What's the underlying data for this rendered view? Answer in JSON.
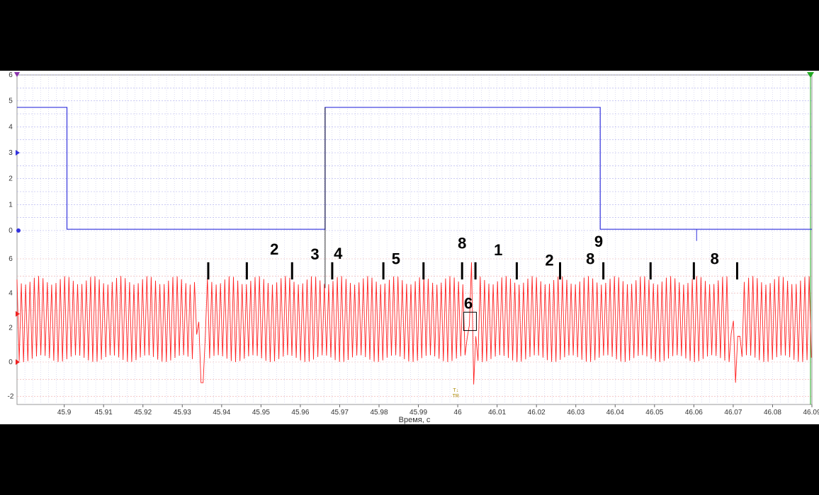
{
  "chart_data": {
    "type": "line",
    "title": "",
    "xlabel": "Время, с",
    "xlim": [
      45.888,
      46.09
    ],
    "x_ticks": [
      "45.9",
      "45.91",
      "45.92",
      "45.93",
      "45.94",
      "45.95",
      "45.96",
      "45.97",
      "45.98",
      "45.99",
      "46",
      "46.01",
      "46.02",
      "46.03",
      "46.04",
      "46.05",
      "46.06",
      "46.07",
      "46.08",
      "46.09"
    ],
    "ylim": [
      -2.2,
      6.2
    ],
    "y_ticks_top": [
      "6",
      "5",
      "4",
      "3",
      "2",
      "1",
      "0"
    ],
    "y_ticks_bottom": [
      "6",
      "4",
      "2",
      "0",
      "-2"
    ],
    "grid": true,
    "series": [
      {
        "color": "#3333dd",
        "points": [
          [
            45.888,
            4.75
          ],
          [
            45.9007,
            4.75
          ],
          [
            45.9007,
            0.05
          ],
          [
            45.9663,
            0.05
          ],
          [
            45.9663,
            4.75
          ],
          [
            46.0362,
            4.75
          ],
          [
            46.0362,
            0.05
          ],
          [
            46.09,
            0.05
          ]
        ],
        "glitch": {
          "x": 46.0607,
          "y": -0.4
        }
      },
      {
        "color": "#ff2222",
        "oscillation": {
          "high": 5.0,
          "low": 0.0,
          "period": 0.0011
        },
        "gaps": [
          {
            "x": 45.9347,
            "peak": 5.9,
            "dip": -1.2
          },
          {
            "x": 46.0036,
            "peak": 5.8,
            "dip": -1.3
          },
          {
            "x": 46.0705,
            "peak": 5.8,
            "dip": -1.2
          }
        ]
      }
    ],
    "annotations": [
      {
        "text": "2",
        "x": 45.9534,
        "y": 6.25
      },
      {
        "text": "3",
        "x": 45.9637,
        "y": 5.95
      },
      {
        "text": "4",
        "x": 45.9696,
        "y": 6.0
      },
      {
        "text": "5",
        "x": 45.9843,
        "y": 5.7
      },
      {
        "text": "8",
        "x": 46.0011,
        "y": 6.6
      },
      {
        "text": "1",
        "x": 46.0103,
        "y": 6.2
      },
      {
        "text": "6",
        "x": 46.0027,
        "y": 3.1
      },
      {
        "text": "2",
        "x": 46.0233,
        "y": 5.6
      },
      {
        "text": "8",
        "x": 46.0337,
        "y": 5.7
      },
      {
        "text": "9",
        "x": 46.0358,
        "y": 6.7
      },
      {
        "text": "8",
        "x": 46.0653,
        "y": 5.7
      }
    ],
    "trigger_marker": {
      "text": "T↓\nTR",
      "x": 45.9995
    }
  }
}
